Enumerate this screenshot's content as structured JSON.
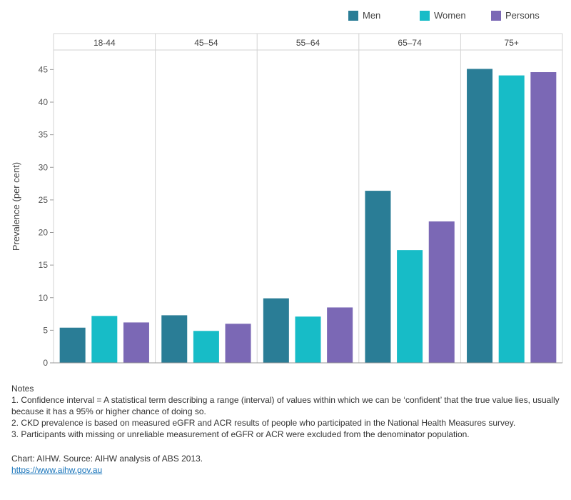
{
  "legend": [
    {
      "label": "Men",
      "color": "#2a7d96"
    },
    {
      "label": "Women",
      "color": "#17bcc7"
    },
    {
      "label": "Persons",
      "color": "#7b68b5"
    }
  ],
  "chart_data": {
    "type": "bar",
    "title": "",
    "xlabel": "",
    "ylabel": "Prevalence (per cent)",
    "categories": [
      "18-44",
      "45–54",
      "55–64",
      "65–74",
      "75+"
    ],
    "series": [
      {
        "name": "Men",
        "values": [
          5.4,
          7.3,
          9.9,
          26.4,
          45.1
        ]
      },
      {
        "name": "Women",
        "values": [
          7.2,
          4.9,
          7.1,
          17.3,
          44.1
        ]
      },
      {
        "name": "Persons",
        "values": [
          6.2,
          6.0,
          8.5,
          21.7,
          44.6
        ]
      }
    ],
    "y_ticks": [
      0,
      5,
      10,
      15,
      20,
      25,
      30,
      35,
      40,
      45
    ],
    "ylim": [
      0,
      48
    ],
    "colors": [
      "#2a7d96",
      "#17bcc7",
      "#7b68b5"
    ]
  },
  "notes": {
    "heading": "Notes",
    "items": [
      "1. Confidence interval = A statistical term describing a range (interval) of values within which we can be ‘confident’ that the true value lies, usually because it has a 95% or higher chance of doing so.",
      "2. CKD prevalence is based on measured eGFR and ACR results of people who participated in the National Health Measures survey.",
      "3. Participants with missing or unreliable measurement of eGFR or ACR were excluded from the denominator population."
    ]
  },
  "source": {
    "text": "Chart: AIHW. Source: AIHW analysis of ABS 2013.",
    "link": "https://www.aihw.gov.au"
  }
}
